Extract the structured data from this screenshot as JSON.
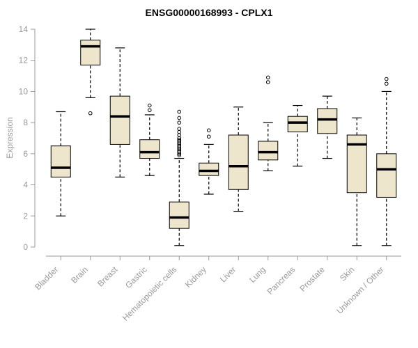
{
  "chart_data": {
    "type": "boxplot",
    "title": "ENSG00000168993 - CPLX1",
    "ylabel": "Expression",
    "ylim": [
      0,
      14
    ],
    "yticks": [
      0,
      2,
      4,
      6,
      8,
      10,
      12,
      14
    ],
    "grid": false,
    "legend": "none",
    "categories": [
      "Bladder",
      "Brain",
      "Breast",
      "Gastric",
      "Hematopoietic cells",
      "Kidney",
      "Liver",
      "Lung",
      "Pancreas",
      "Prostate",
      "Skin",
      "Unknown / Other"
    ],
    "boxes": [
      {
        "category": "Bladder",
        "whisker_low": 2.0,
        "q1": 4.5,
        "median": 5.1,
        "q3": 6.5,
        "whisker_high": 8.7,
        "outliers": []
      },
      {
        "category": "Brain",
        "whisker_low": 9.6,
        "q1": 11.7,
        "median": 12.9,
        "q3": 13.3,
        "whisker_high": 14.0,
        "outliers": [
          8.6
        ]
      },
      {
        "category": "Breast",
        "whisker_low": 4.5,
        "q1": 6.6,
        "median": 8.4,
        "q3": 9.7,
        "whisker_high": 12.8,
        "outliers": []
      },
      {
        "category": "Gastric",
        "whisker_low": 4.6,
        "q1": 5.7,
        "median": 6.1,
        "q3": 6.9,
        "whisker_high": 8.5,
        "outliers": [
          8.8,
          9.1
        ]
      },
      {
        "category": "Hematopoietic cells",
        "whisker_low": 0.1,
        "q1": 1.2,
        "median": 1.9,
        "q3": 2.9,
        "whisker_high": 5.7,
        "outliers": [
          5.9,
          6.0,
          6.1,
          6.2,
          6.3,
          6.4,
          6.5,
          6.6,
          6.7,
          6.8,
          6.9,
          7.0,
          7.2,
          7.4,
          7.6,
          8.0,
          8.3,
          8.7
        ]
      },
      {
        "category": "Kidney",
        "whisker_low": 3.4,
        "q1": 4.6,
        "median": 4.9,
        "q3": 5.4,
        "whisker_high": 6.6,
        "outliers": [
          7.1,
          7.5
        ]
      },
      {
        "category": "Liver",
        "whisker_low": 2.3,
        "q1": 3.7,
        "median": 5.2,
        "q3": 7.2,
        "whisker_high": 9.0,
        "outliers": []
      },
      {
        "category": "Lung",
        "whisker_low": 4.9,
        "q1": 5.6,
        "median": 6.1,
        "q3": 6.8,
        "whisker_high": 8.0,
        "outliers": [
          10.6,
          10.9
        ]
      },
      {
        "category": "Pancreas",
        "whisker_low": 5.2,
        "q1": 7.4,
        "median": 8.0,
        "q3": 8.4,
        "whisker_high": 9.1,
        "outliers": []
      },
      {
        "category": "Prostate",
        "whisker_low": 5.7,
        "q1": 7.3,
        "median": 8.2,
        "q3": 8.9,
        "whisker_high": 9.7,
        "outliers": []
      },
      {
        "category": "Skin",
        "whisker_low": 0.1,
        "q1": 3.5,
        "median": 6.6,
        "q3": 7.2,
        "whisker_high": 8.3,
        "outliers": []
      },
      {
        "category": "Unknown / Other",
        "whisker_low": 0.1,
        "q1": 3.2,
        "median": 5.0,
        "q3": 6.0,
        "whisker_high": 10.0,
        "outliers": [
          10.5,
          10.8
        ]
      }
    ],
    "colors": {
      "box_fill": "#EDE5CC",
      "box_stroke": "#000000",
      "median": "#000000",
      "whisker": "#000000",
      "outlier_stroke": "#000000",
      "axis": "#9a9a9a",
      "tick_label": "#999999",
      "title": "#000000",
      "background": "#ffffff"
    }
  }
}
